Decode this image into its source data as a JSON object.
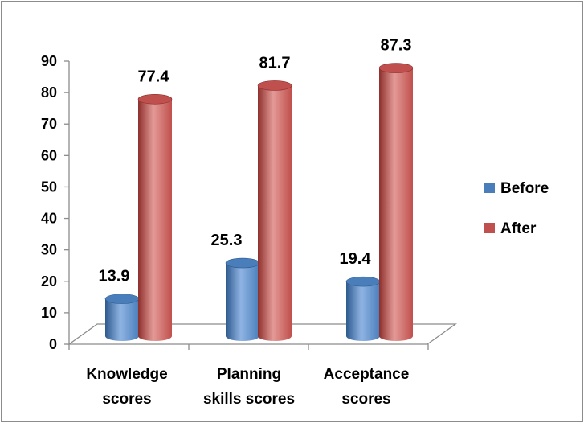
{
  "chart_data": {
    "type": "bar",
    "categories": [
      [
        "Knowledge",
        "scores"
      ],
      [
        "Planning",
        "skills scores"
      ],
      [
        "Acceptance",
        "scores"
      ]
    ],
    "series": [
      {
        "name": "Before",
        "values": [
          13.9,
          25.3,
          19.4
        ],
        "color": "#4a7ebb",
        "color_dark": "#2e5a8e",
        "color_light": "#8fb4e3"
      },
      {
        "name": "After",
        "values": [
          77.4,
          81.7,
          87.3
        ],
        "color": "#c0504d",
        "color_dark": "#8e2f2c",
        "color_light": "#e39a97"
      }
    ],
    "ylim": [
      0,
      90
    ],
    "yticks": [
      0,
      10,
      20,
      30,
      40,
      50,
      60,
      70,
      80,
      90
    ],
    "title": "",
    "xlabel": "",
    "ylabel": "",
    "legend_position": "right",
    "grid": false,
    "style": "3d-cylinder"
  }
}
